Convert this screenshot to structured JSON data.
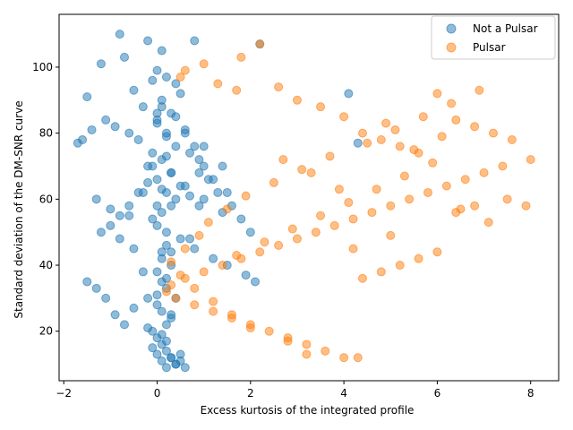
{
  "chart_data": {
    "type": "scatter",
    "title": "",
    "xlabel": "Excess kurtosis of the integrated profile",
    "ylabel": "Standard deviation of the DM-SNR curve",
    "xlim": [
      -2.1,
      8.6
    ],
    "ylim": [
      5,
      116
    ],
    "xticks": [
      -2,
      0,
      2,
      4,
      6,
      8
    ],
    "yticks": [
      20,
      40,
      60,
      80,
      100
    ],
    "grid": false,
    "legend_position": "top-right",
    "series": [
      {
        "name": "Not a Pulsar",
        "color": "#1f77b4",
        "x": [
          -0.8,
          -0.7,
          -1.2,
          -0.2,
          0.1,
          0.0,
          -0.1,
          0.2,
          0.4,
          0.8,
          0.5,
          -0.5,
          -0.3,
          0.1,
          0.3,
          -1.5,
          -1.4,
          -1.1,
          -0.9,
          -0.6,
          -0.4,
          0.0,
          0.2,
          0.6,
          1.0,
          1.4,
          0.9,
          0.7,
          0.3,
          -0.1,
          -0.2,
          0.1,
          0.4,
          0.0,
          -0.3,
          -0.6,
          -1.0,
          -1.3,
          -1.6,
          -1.7,
          -0.8,
          -0.5,
          0.2,
          0.5,
          0.8,
          1.2,
          1.5,
          1.9,
          2.1,
          2.2,
          4.1,
          4.3,
          -0.2,
          0.0,
          0.1,
          0.3,
          0.2,
          -0.1,
          0.0,
          0.1,
          0.2,
          0.3,
          0.4,
          0.5,
          0.6,
          -0.1,
          0.0,
          0.1,
          0.2,
          0.3,
          0.4,
          0.5,
          0.0,
          0.1,
          0.2,
          0.3,
          0.1,
          0.2,
          0.0,
          -0.1,
          0.1,
          0.3,
          0.2,
          0.0,
          -0.2,
          -0.4,
          -0.6,
          -0.8,
          -1.0,
          -1.2,
          0.6,
          0.9,
          1.1,
          1.3,
          1.6,
          1.8,
          2.0,
          1.4,
          1.0,
          0.7,
          -1.5,
          -1.3,
          -1.1,
          -0.9,
          -0.7,
          0.0,
          0.2,
          0.4,
          0.1,
          -0.1,
          0.3,
          0.5,
          0.2,
          0.0,
          0.1,
          0.4,
          0.6,
          0.8,
          1.0,
          1.2,
          1.5,
          0.9,
          0.3,
          -0.3,
          -0.5,
          0.7,
          0.1,
          0.2,
          0.0,
          0.3,
          0.1,
          0.2,
          -0.2,
          0.4
        ],
        "y": [
          110,
          103,
          101,
          108,
          105,
          99,
          96,
          97,
          95,
          108,
          92,
          93,
          88,
          90,
          86,
          91,
          81,
          84,
          82,
          80,
          78,
          84,
          79,
          81,
          76,
          70,
          72,
          74,
          68,
          70,
          65,
          63,
          60,
          58,
          62,
          55,
          57,
          60,
          78,
          77,
          48,
          45,
          50,
          48,
          45,
          42,
          40,
          37,
          35,
          107,
          92,
          77,
          30,
          28,
          26,
          24,
          22,
          20,
          18,
          16,
          14,
          12,
          10,
          11,
          9,
          15,
          13,
          11,
          9,
          12,
          10,
          13,
          38,
          35,
          33,
          40,
          44,
          46,
          52,
          54,
          56,
          58,
          62,
          66,
          70,
          62,
          58,
          55,
          52,
          50,
          64,
          68,
          66,
          62,
          58,
          54,
          50,
          56,
          60,
          61,
          35,
          33,
          30,
          25,
          22,
          86,
          80,
          76,
          72,
          74,
          68,
          64,
          73,
          83,
          88,
          85,
          80,
          76,
          70,
          66,
          62,
          58,
          44,
          38,
          27,
          48,
          42,
          36,
          31,
          25,
          19,
          17,
          21,
          30
        ]
      },
      {
        "name": "Pulsar",
        "color": "#ff7f0e",
        "x": [
          2.2,
          1.8,
          1.0,
          0.6,
          0.5,
          1.3,
          1.7,
          2.6,
          3.0,
          3.5,
          4.0,
          4.4,
          4.8,
          5.2,
          5.6,
          6.0,
          6.4,
          6.8,
          7.2,
          7.6,
          8.0,
          7.4,
          7.0,
          6.6,
          6.2,
          5.8,
          5.4,
          5.0,
          4.6,
          4.2,
          3.8,
          3.4,
          3.0,
          2.6,
          2.2,
          1.8,
          1.4,
          1.0,
          0.6,
          0.3,
          0.2,
          0.4,
          0.8,
          1.2,
          1.6,
          2.0,
          2.4,
          2.8,
          3.2,
          3.6,
          4.0,
          4.4,
          4.8,
          5.2,
          5.6,
          6.0,
          6.4,
          6.8,
          7.5,
          7.9,
          4.3,
          3.2,
          2.8,
          2.0,
          1.6,
          1.2,
          0.8,
          0.5,
          0.3,
          0.6,
          0.9,
          1.1,
          1.5,
          1.9,
          2.5,
          3.1,
          3.7,
          4.5,
          5.1,
          5.7,
          6.3,
          6.9,
          5.9,
          5.3,
          4.7,
          4.1,
          3.5,
          2.9,
          2.3,
          1.7,
          5.5,
          6.1,
          4.9,
          3.9,
          3.3,
          2.7,
          6.5,
          7.1,
          5.0,
          4.2
        ],
        "y": [
          107,
          103,
          101,
          99,
          97,
          95,
          93,
          94,
          90,
          88,
          85,
          80,
          78,
          76,
          74,
          92,
          84,
          82,
          80,
          78,
          72,
          70,
          68,
          66,
          64,
          62,
          60,
          58,
          56,
          54,
          52,
          50,
          48,
          46,
          44,
          42,
          40,
          38,
          36,
          34,
          32,
          30,
          28,
          26,
          24,
          22,
          20,
          18,
          16,
          14,
          12,
          36,
          38,
          40,
          42,
          44,
          56,
          58,
          60,
          58,
          12,
          13,
          17,
          21,
          25,
          29,
          33,
          37,
          41,
          45,
          49,
          53,
          57,
          61,
          65,
          69,
          73,
          77,
          81,
          85,
          89,
          93,
          71,
          67,
          63,
          59,
          55,
          51,
          47,
          43,
          75,
          79,
          83,
          63,
          68,
          72,
          57,
          53,
          49,
          45
        ]
      }
    ]
  }
}
